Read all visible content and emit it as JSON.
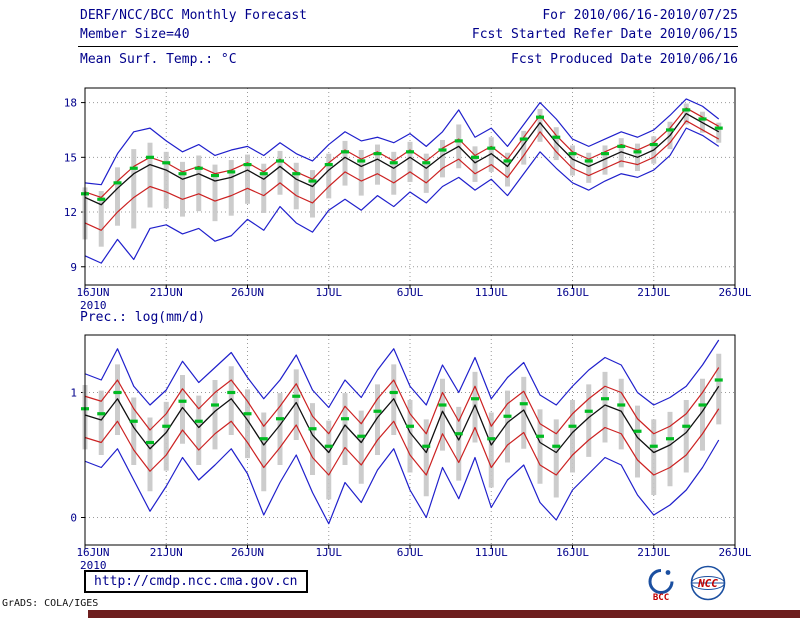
{
  "header": {
    "title": "DERF/NCC/BCC Monthly Forecast",
    "member_size": "Member Size=40",
    "for_range": "For 2010/06/16-2010/07/25",
    "fcst_started": "Fcst Started Refer Date 2010/06/15",
    "fcst_produced": "Fcst Produced Date 2010/06/16"
  },
  "footer": {
    "url": "http://cmdp.ncc.cma.gov.cn",
    "credit": "GrADS: COLA/IGES",
    "logos": [
      {
        "label": "BCC"
      },
      {
        "label": "NCC"
      }
    ]
  },
  "colors": {
    "text": "#00008b",
    "grid": "#9a9a9a",
    "frame": "#000000",
    "spread_bar": "#c6c6c6",
    "bound_line": "#2020cc",
    "mid_line": "#cc2222",
    "median_line": "#101010",
    "ensemble_mean": "#00bb22",
    "bottom_bar": "#6d1e1e"
  },
  "chart_data": [
    {
      "type": "line",
      "title": "Mean Surf. Temp.: °C",
      "xlabel": "",
      "ylabel": "",
      "ylim": [
        8.0,
        18.8
      ],
      "yticks": [
        9,
        12,
        15,
        18
      ],
      "x_tick_labels": [
        "16JUN",
        "21JUN",
        "26JUN",
        "1JUL",
        "6JUL",
        "11JUL",
        "16JUL",
        "21JUL",
        "26JUL"
      ],
      "x_tick_days": [
        0,
        5,
        10,
        15,
        20,
        25,
        30,
        35,
        40
      ],
      "x_year": "2010",
      "grid": true,
      "series": [
        {
          "name": "upper-bound",
          "color": "#2020cc",
          "width": 1.2,
          "style": "solid",
          "values": [
            13.6,
            13.5,
            15.2,
            16.4,
            16.6,
            15.9,
            15.3,
            15.7,
            15.1,
            15.4,
            15.6,
            15.1,
            15.8,
            15.2,
            14.8,
            15.7,
            16.4,
            15.9,
            16.1,
            15.8,
            16.3,
            15.6,
            16.4,
            17.6,
            16.1,
            16.6,
            15.6,
            16.8,
            18.0,
            17.1,
            16.0,
            15.6,
            16.0,
            16.4,
            16.1,
            16.5,
            17.3,
            18.2,
            17.8,
            17.1
          ]
        },
        {
          "name": "upper-mid",
          "color": "#cc2222",
          "width": 1.2,
          "style": "solid",
          "values": [
            13.1,
            12.8,
            13.7,
            14.5,
            15.0,
            14.7,
            14.2,
            14.5,
            14.1,
            14.3,
            14.7,
            14.2,
            14.9,
            14.2,
            13.8,
            14.7,
            15.4,
            14.9,
            15.3,
            14.8,
            15.4,
            14.8,
            15.5,
            16.0,
            15.1,
            15.6,
            14.9,
            16.1,
            17.3,
            16.2,
            15.3,
            14.9,
            15.3,
            15.7,
            15.4,
            15.8,
            16.6,
            17.7,
            17.2,
            16.7
          ]
        },
        {
          "name": "median",
          "color": "#101010",
          "width": 1.3,
          "style": "solid",
          "values": [
            12.8,
            12.4,
            13.3,
            14.1,
            14.6,
            14.3,
            13.8,
            14.1,
            13.7,
            13.9,
            14.3,
            13.8,
            14.5,
            13.8,
            13.4,
            14.3,
            15.0,
            14.5,
            14.9,
            14.4,
            15.0,
            14.4,
            15.1,
            15.6,
            14.7,
            15.2,
            14.5,
            15.7,
            16.9,
            15.8,
            14.9,
            14.5,
            14.9,
            15.3,
            15.0,
            15.4,
            16.2,
            17.4,
            16.9,
            16.4
          ]
        },
        {
          "name": "lower-mid",
          "color": "#cc2222",
          "width": 1.2,
          "style": "solid",
          "values": [
            11.4,
            11.0,
            12.0,
            12.8,
            13.4,
            13.1,
            12.7,
            13.0,
            12.6,
            12.9,
            13.3,
            12.9,
            13.6,
            12.9,
            12.5,
            13.4,
            14.2,
            13.7,
            14.1,
            13.6,
            14.2,
            13.6,
            14.4,
            14.9,
            14.1,
            14.6,
            13.9,
            15.1,
            16.4,
            15.3,
            14.4,
            14.0,
            14.4,
            14.8,
            14.6,
            15.0,
            15.8,
            17.0,
            16.5,
            16.0
          ]
        },
        {
          "name": "lower-bound",
          "color": "#2020cc",
          "width": 1.2,
          "style": "solid",
          "values": [
            9.6,
            9.2,
            10.5,
            9.4,
            11.1,
            11.3,
            10.8,
            11.1,
            10.4,
            10.7,
            11.6,
            11.0,
            12.3,
            11.4,
            10.9,
            12.1,
            12.7,
            12.1,
            12.9,
            12.3,
            13.1,
            12.5,
            13.4,
            13.9,
            13.2,
            13.8,
            12.9,
            14.1,
            15.3,
            14.4,
            13.6,
            13.2,
            13.7,
            14.1,
            13.9,
            14.3,
            15.1,
            16.6,
            16.2,
            15.6
          ]
        },
        {
          "name": "ensemble-mean",
          "color": "#00bb22",
          "width": 3.2,
          "style": "segments",
          "values": [
            13.0,
            12.7,
            13.6,
            14.4,
            15.0,
            14.7,
            14.1,
            14.4,
            14.0,
            14.2,
            14.6,
            14.1,
            14.8,
            14.1,
            13.7,
            14.6,
            15.3,
            14.8,
            15.2,
            14.7,
            15.3,
            14.7,
            15.4,
            15.9,
            15.0,
            15.5,
            14.8,
            16.0,
            17.2,
            16.1,
            15.2,
            14.8,
            15.2,
            15.6,
            15.3,
            15.7,
            16.5,
            17.6,
            17.1,
            16.6
          ]
        }
      ]
    },
    {
      "type": "line",
      "title": "Prec.: log(mm/d)",
      "xlabel": "",
      "ylabel": "",
      "ylim": [
        -0.22,
        1.46
      ],
      "yticks": [
        0,
        1
      ],
      "x_tick_labels": [
        "16JUN",
        "21JUN",
        "26JUN",
        "1JUL",
        "6JUL",
        "11JUL",
        "16JUL",
        "21JUL",
        "26JUL"
      ],
      "x_tick_days": [
        0,
        5,
        10,
        15,
        20,
        25,
        30,
        35,
        40
      ],
      "x_year": "2010",
      "grid": true,
      "series": [
        {
          "name": "upper-bound",
          "color": "#2020cc",
          "width": 1.2,
          "style": "solid",
          "values": [
            1.15,
            1.1,
            1.35,
            1.05,
            0.9,
            1.02,
            1.25,
            1.08,
            1.2,
            1.32,
            1.12,
            0.95,
            1.1,
            1.3,
            1.02,
            0.88,
            1.1,
            0.96,
            1.18,
            1.35,
            1.05,
            0.9,
            1.22,
            1.0,
            1.28,
            0.95,
            1.12,
            1.24,
            0.98,
            0.9,
            1.05,
            1.18,
            1.28,
            1.22,
            1.0,
            0.9,
            0.96,
            1.05,
            1.22,
            1.42
          ]
        },
        {
          "name": "upper-mid",
          "color": "#cc2222",
          "width": 1.2,
          "style": "solid",
          "values": [
            0.97,
            0.93,
            1.1,
            0.87,
            0.7,
            0.83,
            1.03,
            0.87,
            1.0,
            1.1,
            0.93,
            0.73,
            0.89,
            1.07,
            0.81,
            0.67,
            0.89,
            0.75,
            0.95,
            1.1,
            0.83,
            0.67,
            1.0,
            0.77,
            1.05,
            0.73,
            0.91,
            1.01,
            0.75,
            0.67,
            0.83,
            0.95,
            1.05,
            1.0,
            0.79,
            0.67,
            0.73,
            0.83,
            1.0,
            1.2
          ]
        },
        {
          "name": "median",
          "color": "#101010",
          "width": 1.3,
          "style": "solid",
          "values": [
            0.82,
            0.78,
            0.95,
            0.72,
            0.55,
            0.68,
            0.88,
            0.72,
            0.85,
            0.95,
            0.78,
            0.58,
            0.74,
            0.92,
            0.66,
            0.52,
            0.74,
            0.6,
            0.8,
            0.95,
            0.68,
            0.52,
            0.85,
            0.62,
            0.9,
            0.58,
            0.76,
            0.86,
            0.6,
            0.52,
            0.68,
            0.8,
            0.9,
            0.85,
            0.64,
            0.52,
            0.58,
            0.68,
            0.85,
            1.05
          ]
        },
        {
          "name": "lower-mid",
          "color": "#cc2222",
          "width": 1.2,
          "style": "solid",
          "values": [
            0.64,
            0.6,
            0.77,
            0.54,
            0.37,
            0.5,
            0.7,
            0.54,
            0.67,
            0.77,
            0.6,
            0.4,
            0.56,
            0.74,
            0.48,
            0.34,
            0.56,
            0.42,
            0.62,
            0.77,
            0.5,
            0.34,
            0.67,
            0.44,
            0.72,
            0.4,
            0.58,
            0.68,
            0.42,
            0.34,
            0.5,
            0.62,
            0.72,
            0.67,
            0.46,
            0.34,
            0.4,
            0.5,
            0.67,
            0.87
          ]
        },
        {
          "name": "lower-bound",
          "color": "#2020cc",
          "width": 1.2,
          "style": "solid",
          "values": [
            0.45,
            0.4,
            0.55,
            0.3,
            0.05,
            0.25,
            0.48,
            0.3,
            0.42,
            0.55,
            0.35,
            0.02,
            0.28,
            0.5,
            0.2,
            -0.05,
            0.28,
            0.12,
            0.38,
            0.55,
            0.22,
            0.0,
            0.4,
            0.15,
            0.48,
            0.08,
            0.3,
            0.42,
            0.12,
            -0.02,
            0.22,
            0.35,
            0.48,
            0.42,
            0.18,
            0.02,
            0.1,
            0.22,
            0.4,
            0.62
          ]
        },
        {
          "name": "ensemble-mean",
          "color": "#00bb22",
          "width": 3.2,
          "style": "segments",
          "values": [
            0.87,
            0.83,
            1.0,
            0.77,
            0.6,
            0.73,
            0.93,
            0.77,
            0.9,
            1.0,
            0.83,
            0.63,
            0.79,
            0.97,
            0.71,
            0.57,
            0.79,
            0.65,
            0.85,
            1.0,
            0.73,
            0.57,
            0.9,
            0.67,
            0.95,
            0.63,
            0.81,
            0.91,
            0.65,
            0.57,
            0.73,
            0.85,
            0.95,
            0.9,
            0.69,
            0.57,
            0.63,
            0.73,
            0.9,
            1.1
          ]
        }
      ]
    }
  ]
}
